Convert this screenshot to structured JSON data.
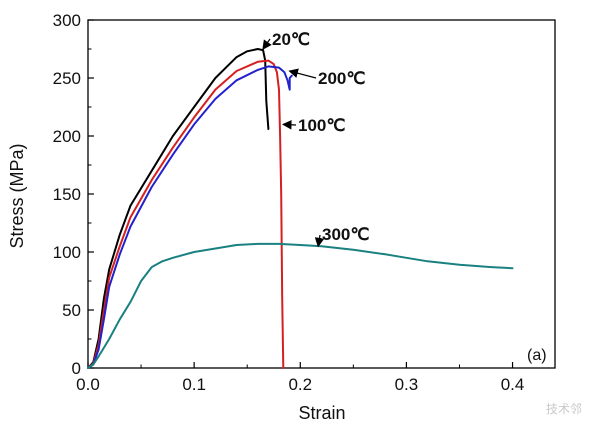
{
  "chart_data": {
    "type": "line",
    "title": "",
    "xlabel": "Strain",
    "ylabel": "Stress (MPa)",
    "xlim": [
      0,
      0.44
    ],
    "ylim": [
      0,
      300
    ],
    "xticks": [
      0.0,
      0.1,
      0.2,
      0.3,
      0.4
    ],
    "xtick_labels": [
      "0.0",
      "0.1",
      "0.2",
      "0.3",
      "0.4"
    ],
    "yticks": [
      0,
      50,
      100,
      150,
      200,
      250,
      300
    ],
    "ytick_labels": [
      "0",
      "50",
      "100",
      "150",
      "200",
      "250",
      "300"
    ],
    "grid": false,
    "panel_label": "(a)",
    "watermark": "技术邻",
    "series": [
      {
        "name": "20℃",
        "color": "#000000",
        "x": [
          0,
          0.005,
          0.01,
          0.015,
          0.02,
          0.03,
          0.04,
          0.06,
          0.08,
          0.1,
          0.12,
          0.14,
          0.15,
          0.16,
          0.165,
          0.167,
          0.168,
          0.17
        ],
        "y": [
          0,
          5,
          25,
          60,
          85,
          115,
          140,
          170,
          200,
          225,
          250,
          268,
          273,
          275,
          274,
          265,
          230,
          206
        ]
      },
      {
        "name": "100℃",
        "color": "#d42020",
        "x": [
          0,
          0.005,
          0.01,
          0.015,
          0.02,
          0.03,
          0.04,
          0.06,
          0.08,
          0.1,
          0.12,
          0.14,
          0.16,
          0.17,
          0.175,
          0.178,
          0.18,
          0.181,
          0.182,
          0.183,
          0.184
        ],
        "y": [
          0,
          4,
          20,
          50,
          78,
          105,
          130,
          162,
          190,
          216,
          240,
          256,
          264,
          265,
          262,
          255,
          240,
          200,
          150,
          60,
          0
        ]
      },
      {
        "name": "200℃",
        "color": "#2222cc",
        "x": [
          0,
          0.005,
          0.01,
          0.015,
          0.02,
          0.03,
          0.04,
          0.06,
          0.08,
          0.1,
          0.12,
          0.14,
          0.16,
          0.17,
          0.18,
          0.185,
          0.188,
          0.19,
          0.19,
          0.192
        ],
        "y": [
          0,
          3,
          16,
          42,
          70,
          98,
          122,
          156,
          184,
          210,
          232,
          248,
          257,
          260,
          259,
          255,
          248,
          240,
          250,
          252
        ]
      },
      {
        "name": "300℃",
        "color": "#1a8080",
        "x": [
          0,
          0.005,
          0.01,
          0.02,
          0.03,
          0.04,
          0.05,
          0.06,
          0.07,
          0.08,
          0.1,
          0.12,
          0.14,
          0.16,
          0.18,
          0.2,
          0.22,
          0.25,
          0.28,
          0.3,
          0.32,
          0.35,
          0.38,
          0.4
        ],
        "y": [
          0,
          3,
          10,
          25,
          42,
          57,
          75,
          87,
          92,
          95,
          100,
          103,
          106,
          107,
          107,
          106,
          105,
          102,
          98,
          95,
          92,
          89,
          87,
          86
        ]
      }
    ],
    "annotations": [
      {
        "label": "20℃",
        "points_to": [
          0.163,
          275
        ]
      },
      {
        "label": "200℃",
        "points_to": [
          0.188,
          256
        ]
      },
      {
        "label": "100℃",
        "points_to": [
          0.182,
          210
        ]
      },
      {
        "label": "300℃",
        "points_to": [
          0.215,
          105
        ]
      }
    ]
  }
}
